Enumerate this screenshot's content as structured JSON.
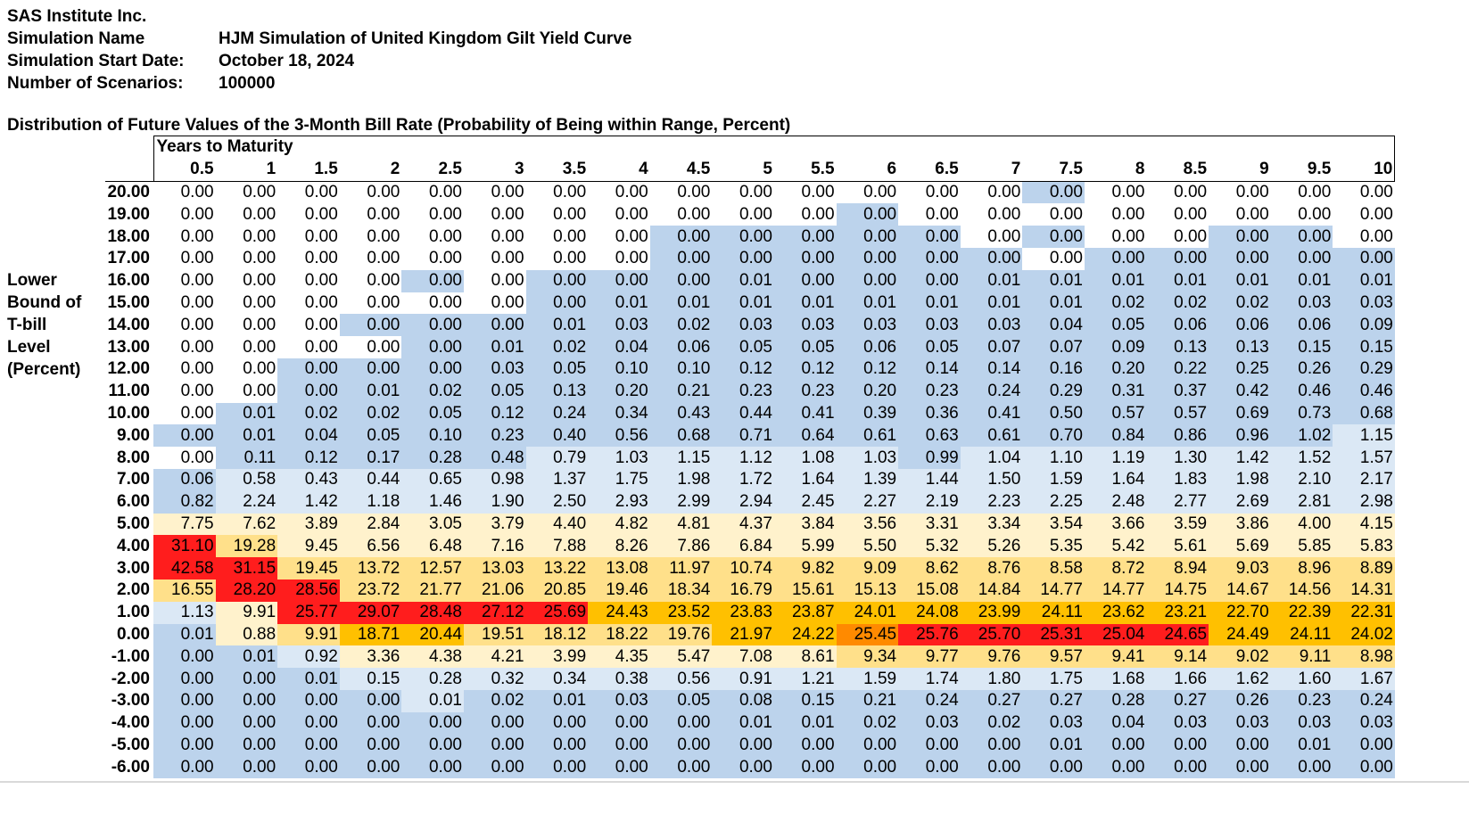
{
  "header": {
    "company": "SAS Institute Inc.",
    "rows": [
      {
        "label": "Simulation Name",
        "value": "HJM Simulation of United Kingdom Gilt Yield Curve"
      },
      {
        "label": "Simulation Start Date:",
        "value": "October 18, 2024"
      },
      {
        "label": "Number of Scenarios:",
        "value": "100000"
      }
    ]
  },
  "table_title": "Distribution of Future Values of the 3-Month Bill Rate (Probability of Being within Range, Percent)",
  "row_axis_label": [
    "Lower",
    "Bound of",
    "T-bill",
    "Level",
    "(Percent)"
  ],
  "column_axis_label": "Years to Maturity",
  "maturities": [
    "0.5",
    "1",
    "1.5",
    "2",
    "2.5",
    "3",
    "3.5",
    "4",
    "4.5",
    "5",
    "5.5",
    "6",
    "6.5",
    "7",
    "7.5",
    "8",
    "8.5",
    "9",
    "9.5",
    "10"
  ],
  "rows": [
    {
      "bound": "20.00",
      "values": [
        "0.00",
        "0.00",
        "0.00",
        "0.00",
        "0.00",
        "0.00",
        "0.00",
        "0.00",
        "0.00",
        "0.00",
        "0.00",
        "0.00",
        "0.00",
        "0.00",
        "0.00",
        "0.00",
        "0.00",
        "0.00",
        "0.00",
        "0.00"
      ]
    },
    {
      "bound": "19.00",
      "values": [
        "0.00",
        "0.00",
        "0.00",
        "0.00",
        "0.00",
        "0.00",
        "0.00",
        "0.00",
        "0.00",
        "0.00",
        "0.00",
        "0.00",
        "0.00",
        "0.00",
        "0.00",
        "0.00",
        "0.00",
        "0.00",
        "0.00",
        "0.00"
      ]
    },
    {
      "bound": "18.00",
      "values": [
        "0.00",
        "0.00",
        "0.00",
        "0.00",
        "0.00",
        "0.00",
        "0.00",
        "0.00",
        "0.00",
        "0.00",
        "0.00",
        "0.00",
        "0.00",
        "0.00",
        "0.00",
        "0.00",
        "0.00",
        "0.00",
        "0.00",
        "0.00"
      ]
    },
    {
      "bound": "17.00",
      "values": [
        "0.00",
        "0.00",
        "0.00",
        "0.00",
        "0.00",
        "0.00",
        "0.00",
        "0.00",
        "0.00",
        "0.00",
        "0.00",
        "0.00",
        "0.00",
        "0.00",
        "0.00",
        "0.00",
        "0.00",
        "0.00",
        "0.00",
        "0.00"
      ]
    },
    {
      "bound": "16.00",
      "values": [
        "0.00",
        "0.00",
        "0.00",
        "0.00",
        "0.00",
        "0.00",
        "0.00",
        "0.00",
        "0.00",
        "0.01",
        "0.00",
        "0.00",
        "0.00",
        "0.01",
        "0.01",
        "0.01",
        "0.01",
        "0.01",
        "0.01",
        "0.01"
      ]
    },
    {
      "bound": "15.00",
      "values": [
        "0.00",
        "0.00",
        "0.00",
        "0.00",
        "0.00",
        "0.00",
        "0.00",
        "0.01",
        "0.01",
        "0.01",
        "0.01",
        "0.01",
        "0.01",
        "0.01",
        "0.01",
        "0.02",
        "0.02",
        "0.02",
        "0.03",
        "0.03"
      ]
    },
    {
      "bound": "14.00",
      "values": [
        "0.00",
        "0.00",
        "0.00",
        "0.00",
        "0.00",
        "0.00",
        "0.01",
        "0.03",
        "0.02",
        "0.03",
        "0.03",
        "0.03",
        "0.03",
        "0.03",
        "0.04",
        "0.05",
        "0.06",
        "0.06",
        "0.06",
        "0.09"
      ]
    },
    {
      "bound": "13.00",
      "values": [
        "0.00",
        "0.00",
        "0.00",
        "0.00",
        "0.00",
        "0.01",
        "0.02",
        "0.04",
        "0.06",
        "0.05",
        "0.05",
        "0.06",
        "0.05",
        "0.07",
        "0.07",
        "0.09",
        "0.13",
        "0.13",
        "0.15",
        "0.15"
      ]
    },
    {
      "bound": "12.00",
      "values": [
        "0.00",
        "0.00",
        "0.00",
        "0.00",
        "0.00",
        "0.03",
        "0.05",
        "0.10",
        "0.10",
        "0.12",
        "0.12",
        "0.12",
        "0.14",
        "0.14",
        "0.16",
        "0.20",
        "0.22",
        "0.25",
        "0.26",
        "0.29"
      ]
    },
    {
      "bound": "11.00",
      "values": [
        "0.00",
        "0.00",
        "0.00",
        "0.01",
        "0.02",
        "0.05",
        "0.13",
        "0.20",
        "0.21",
        "0.23",
        "0.23",
        "0.20",
        "0.23",
        "0.24",
        "0.29",
        "0.31",
        "0.37",
        "0.42",
        "0.46",
        "0.46"
      ]
    },
    {
      "bound": "10.00",
      "values": [
        "0.00",
        "0.01",
        "0.02",
        "0.02",
        "0.05",
        "0.12",
        "0.24",
        "0.34",
        "0.43",
        "0.44",
        "0.41",
        "0.39",
        "0.36",
        "0.41",
        "0.50",
        "0.57",
        "0.57",
        "0.69",
        "0.73",
        "0.68"
      ]
    },
    {
      "bound": "9.00",
      "values": [
        "0.00",
        "0.01",
        "0.04",
        "0.05",
        "0.10",
        "0.23",
        "0.40",
        "0.56",
        "0.68",
        "0.71",
        "0.64",
        "0.61",
        "0.63",
        "0.61",
        "0.70",
        "0.84",
        "0.86",
        "0.96",
        "1.02",
        "1.15"
      ]
    },
    {
      "bound": "8.00",
      "values": [
        "0.00",
        "0.11",
        "0.12",
        "0.17",
        "0.28",
        "0.48",
        "0.79",
        "1.03",
        "1.15",
        "1.12",
        "1.08",
        "1.03",
        "0.99",
        "1.04",
        "1.10",
        "1.19",
        "1.30",
        "1.42",
        "1.52",
        "1.57"
      ]
    },
    {
      "bound": "7.00",
      "values": [
        "0.06",
        "0.58",
        "0.43",
        "0.44",
        "0.65",
        "0.98",
        "1.37",
        "1.75",
        "1.98",
        "1.72",
        "1.64",
        "1.39",
        "1.44",
        "1.50",
        "1.59",
        "1.64",
        "1.83",
        "1.98",
        "2.10",
        "2.17"
      ]
    },
    {
      "bound": "6.00",
      "values": [
        "0.82",
        "2.24",
        "1.42",
        "1.18",
        "1.46",
        "1.90",
        "2.50",
        "2.93",
        "2.99",
        "2.94",
        "2.45",
        "2.27",
        "2.19",
        "2.23",
        "2.25",
        "2.48",
        "2.77",
        "2.69",
        "2.81",
        "2.98"
      ]
    },
    {
      "bound": "5.00",
      "values": [
        "7.75",
        "7.62",
        "3.89",
        "2.84",
        "3.05",
        "3.79",
        "4.40",
        "4.82",
        "4.81",
        "4.37",
        "3.84",
        "3.56",
        "3.31",
        "3.34",
        "3.54",
        "3.66",
        "3.59",
        "3.86",
        "4.00",
        "4.15"
      ]
    },
    {
      "bound": "4.00",
      "values": [
        "31.10",
        "19.28",
        "9.45",
        "6.56",
        "6.48",
        "7.16",
        "7.88",
        "8.26",
        "7.86",
        "6.84",
        "5.99",
        "5.50",
        "5.32",
        "5.26",
        "5.35",
        "5.42",
        "5.61",
        "5.69",
        "5.85",
        "5.83"
      ]
    },
    {
      "bound": "3.00",
      "values": [
        "42.58",
        "31.15",
        "19.45",
        "13.72",
        "12.57",
        "13.03",
        "13.22",
        "13.08",
        "11.97",
        "10.74",
        "9.82",
        "9.09",
        "8.62",
        "8.76",
        "8.58",
        "8.72",
        "8.94",
        "9.03",
        "8.96",
        "8.89"
      ]
    },
    {
      "bound": "2.00",
      "values": [
        "16.55",
        "28.20",
        "28.56",
        "23.72",
        "21.77",
        "21.06",
        "20.85",
        "19.46",
        "18.34",
        "16.79",
        "15.61",
        "15.13",
        "15.08",
        "14.84",
        "14.77",
        "14.77",
        "14.75",
        "14.67",
        "14.56",
        "14.31"
      ]
    },
    {
      "bound": "1.00",
      "values": [
        "1.13",
        "9.91",
        "25.77",
        "29.07",
        "28.48",
        "27.12",
        "25.69",
        "24.43",
        "23.52",
        "23.83",
        "23.87",
        "24.01",
        "24.08",
        "23.99",
        "24.11",
        "23.62",
        "23.21",
        "22.70",
        "22.39",
        "22.31"
      ]
    },
    {
      "bound": "0.00",
      "values": [
        "0.01",
        "0.88",
        "9.91",
        "18.71",
        "20.44",
        "19.51",
        "18.12",
        "18.22",
        "19.76",
        "21.97",
        "24.22",
        "25.45",
        "25.76",
        "25.70",
        "25.31",
        "25.04",
        "24.65",
        "24.49",
        "24.11",
        "24.02"
      ]
    },
    {
      "bound": "-1.00",
      "values": [
        "0.00",
        "0.01",
        "0.92",
        "3.36",
        "4.38",
        "4.21",
        "3.99",
        "4.35",
        "5.47",
        "7.08",
        "8.61",
        "9.34",
        "9.77",
        "9.76",
        "9.57",
        "9.41",
        "9.14",
        "9.02",
        "9.11",
        "8.98"
      ]
    },
    {
      "bound": "-2.00",
      "values": [
        "0.00",
        "0.00",
        "0.01",
        "0.15",
        "0.28",
        "0.32",
        "0.34",
        "0.38",
        "0.56",
        "0.91",
        "1.21",
        "1.59",
        "1.74",
        "1.80",
        "1.75",
        "1.68",
        "1.66",
        "1.62",
        "1.60",
        "1.67"
      ]
    },
    {
      "bound": "-3.00",
      "values": [
        "0.00",
        "0.00",
        "0.00",
        "0.00",
        "0.01",
        "0.02",
        "0.01",
        "0.03",
        "0.05",
        "0.08",
        "0.15",
        "0.21",
        "0.24",
        "0.27",
        "0.27",
        "0.28",
        "0.27",
        "0.26",
        "0.23",
        "0.24"
      ]
    },
    {
      "bound": "-4.00",
      "values": [
        "0.00",
        "0.00",
        "0.00",
        "0.00",
        "0.00",
        "0.00",
        "0.00",
        "0.00",
        "0.00",
        "0.01",
        "0.01",
        "0.02",
        "0.03",
        "0.02",
        "0.03",
        "0.04",
        "0.03",
        "0.03",
        "0.03",
        "0.03"
      ]
    },
    {
      "bound": "-5.00",
      "values": [
        "0.00",
        "0.00",
        "0.00",
        "0.00",
        "0.00",
        "0.00",
        "0.00",
        "0.00",
        "0.00",
        "0.00",
        "0.00",
        "0.00",
        "0.00",
        "0.00",
        "0.01",
        "0.00",
        "0.00",
        "0.00",
        "0.01",
        "0.00"
      ]
    },
    {
      "bound": "-6.00",
      "values": [
        "0.00",
        "0.00",
        "0.00",
        "0.00",
        "0.00",
        "0.00",
        "0.00",
        "0.00",
        "0.00",
        "0.00",
        "0.00",
        "0.00",
        "0.00",
        "0.00",
        "0.00",
        "0.00",
        "0.00",
        "0.00",
        "0.00",
        "0.00"
      ]
    }
  ],
  "cell_colors": [
    "00000000000000100000",
    "00000000000100000000",
    "00000000111110100110",
    "00000000111111011111",
    "00001011111111111111",
    "00000011111111111111",
    "00011111111111111111",
    "00001111111111111111",
    "00111111111111111111",
    "00111111111111111111",
    "01111111111111111111",
    "11111111111111111112",
    "01111122222212222222",
    "12222222222222222222",
    "12222222222222222222",
    "33333333333333333333",
    "74333333333333333333",
    "77444444444444444444",
    "47744444444444444444",
    "23777775555555555555",
    "13455444455677777555",
    "11233333333444444444",
    "11122222222222222222",
    "11112111111111111111",
    "11111111111111111111",
    "11111111111111111111",
    "11111111111111111111"
  ],
  "colors": {
    "light_blue": "#bcd3ec",
    "pale_blue": "#dbe8f5",
    "pale_yellow": "#fff2cc",
    "yellow": "#ffe08a",
    "orange": "#ffc000",
    "red": "#ff1d1d"
  }
}
